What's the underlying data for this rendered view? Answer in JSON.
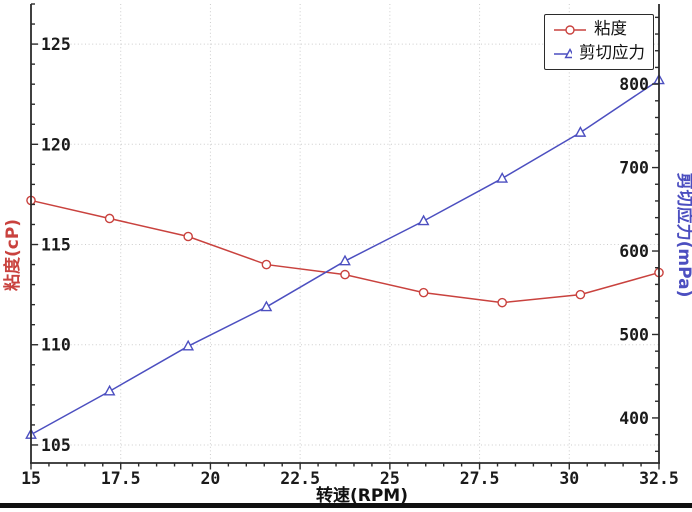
{
  "legend": {
    "items": [
      {
        "label": "粘度"
      },
      {
        "label": "剪切应力"
      }
    ]
  },
  "chart_data": {
    "type": "line",
    "x": [
      15,
      17.19,
      19.38,
      21.56,
      23.75,
      25.94,
      28.13,
      30.31,
      32.5
    ],
    "series": [
      {
        "name": "粘度",
        "axis": "left",
        "color": "#c9423e",
        "marker": "circle",
        "values": [
          117.2,
          116.3,
          115.4,
          114.0,
          113.5,
          112.6,
          112.1,
          112.5,
          113.6
        ]
      },
      {
        "name": "剪切应力",
        "axis": "right",
        "color": "#4c4fc0",
        "marker": "triangle",
        "values": [
          380,
          432,
          486,
          533,
          588,
          636,
          687,
          742,
          805
        ]
      }
    ],
    "title": "",
    "xlabel": "转速(RPM)",
    "ylabel_left": "粘度(cP)",
    "ylabel_right": "剪切应力(mPa)",
    "x_ticks": [
      15,
      17.5,
      20,
      22.5,
      25,
      27.5,
      30,
      32.5
    ],
    "x_minor_step": 0.5,
    "left_ticks": [
      105,
      110,
      115,
      120,
      125
    ],
    "left_minor_step": 1,
    "right_ticks": [
      400,
      500,
      600,
      700,
      800
    ],
    "right_minor_step": 20,
    "xlim": [
      15,
      32.5
    ],
    "left_ylim": [
      104.1,
      127.0
    ],
    "right_ylim": [
      346,
      896
    ],
    "grid": "dotted-major",
    "legend_position": "upper-right",
    "colors": {
      "grid": "#cdcdcd",
      "spine": "#2b2b2b",
      "tick_label": "#1b1b1b",
      "left_axis_label": "#c9423e",
      "right_axis_label": "#4c4fc0"
    }
  }
}
